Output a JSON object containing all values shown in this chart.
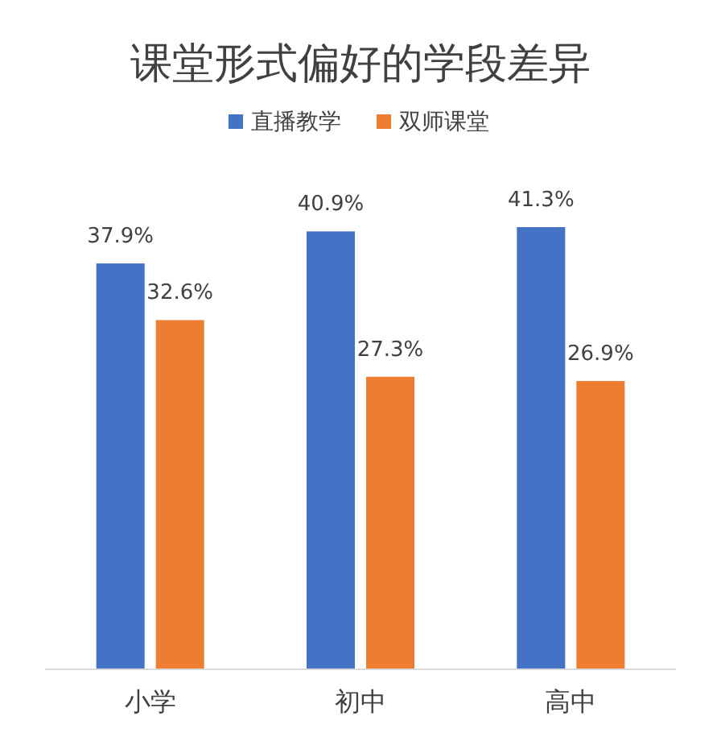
{
  "chart_data": {
    "type": "bar",
    "title": "课堂形式偏好的学段差异",
    "categories": [
      "小学",
      "初中",
      "高中"
    ],
    "series": [
      {
        "name": "直播教学",
        "color": "#4472c4",
        "values": [
          37.9,
          40.9,
          41.3
        ],
        "value_labels": [
          "37.9%",
          "40.9%",
          "41.3%"
        ]
      },
      {
        "name": "双师课堂",
        "color": "#ed7d31",
        "values": [
          32.6,
          27.3,
          26.9
        ],
        "value_labels": [
          "32.6%",
          "27.3%",
          "26.9%"
        ]
      }
    ],
    "legend": "top"
  }
}
